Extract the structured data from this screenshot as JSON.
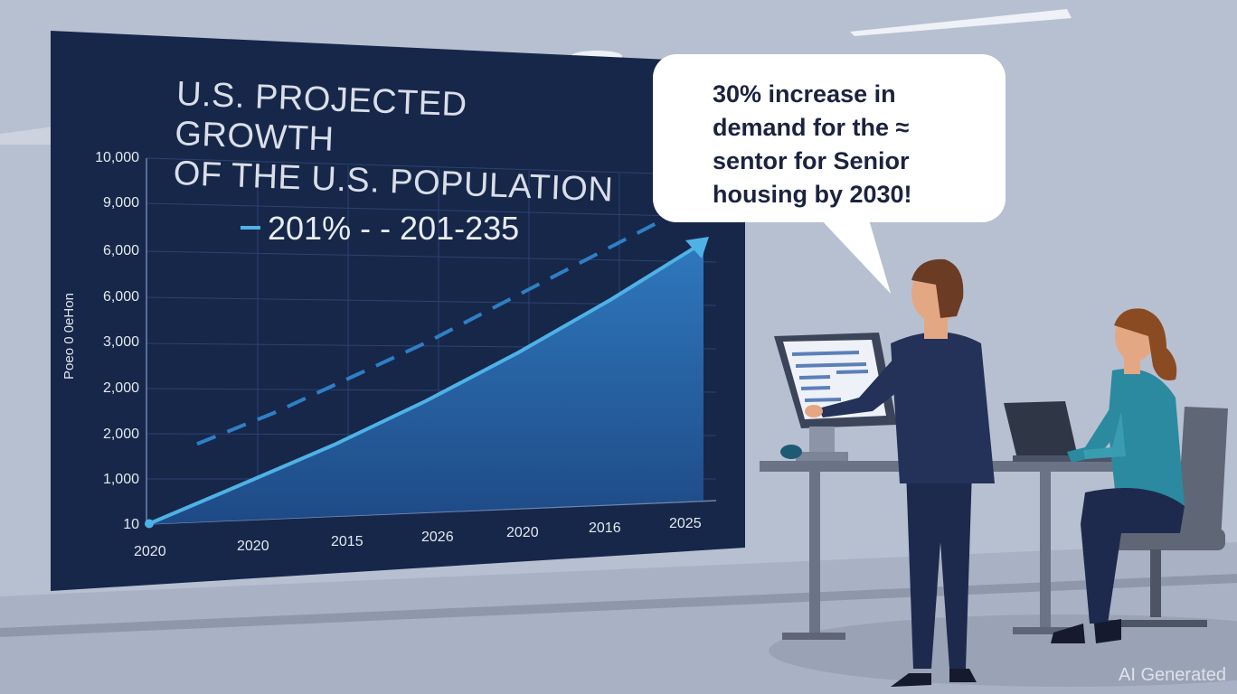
{
  "board": {
    "title_line1": "U.S. PROJECTED GROWTH",
    "title_line2": "OF THE U.S. POPULATION",
    "legend_text": "201% - - 201-235",
    "y_axis_label": "Poeo 0 0eHon"
  },
  "chart_data": {
    "type": "area",
    "title": "U.S. PROJECTED GROWTH OF THE U.S. POPULATION",
    "ylabel": "Poeo 0 0eHon",
    "y_ticks": [
      "10",
      "1,000",
      "2,000",
      "2,000",
      "3,000",
      "6,000",
      "6,000",
      "9,000",
      "10,000"
    ],
    "x_ticks": [
      "2020",
      "2020",
      "2015",
      "2026",
      "2020",
      "2016",
      "2025"
    ],
    "grid": true,
    "series": [
      {
        "style": "solid-area",
        "values": [
          10,
          900,
          1800,
          2800,
          3900,
          5100,
          6400
        ]
      },
      {
        "style": "dashed",
        "values": [
          1000,
          1700,
          2500,
          3300,
          4200,
          5100,
          6000
        ]
      }
    ],
    "colors": {
      "area": "#2f78bd",
      "line": "#4fb2e6",
      "dashed": "#2f7fc4",
      "board": "#16274a"
    }
  },
  "callout": {
    "text": "30% increase in\ndemand for the ≈\nsentor for Senior\nhousing by 2030!"
  },
  "watermark": "AI Generated"
}
